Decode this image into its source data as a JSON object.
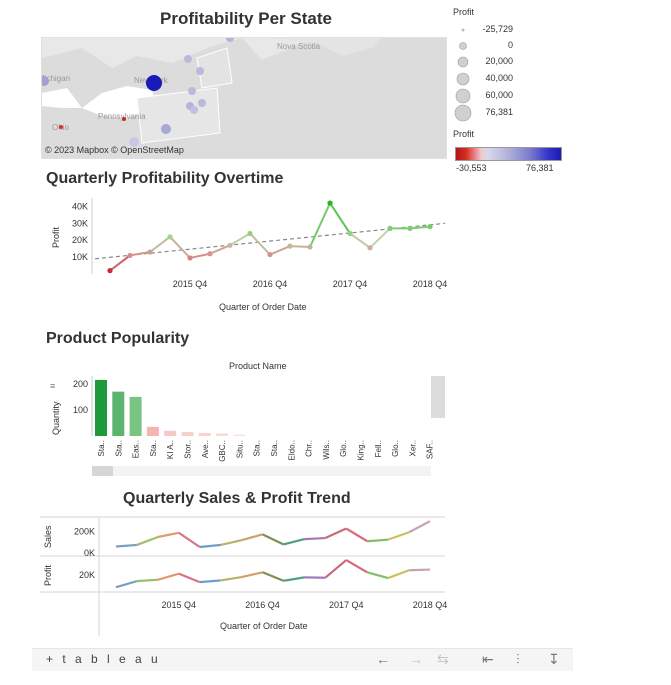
{
  "titles": {
    "map": "Profitability Per State",
    "qpo": "Quarterly Profitability Overtime",
    "pp": "Product Popularity",
    "qsp": "Quarterly Sales & Profit Trend"
  },
  "map": {
    "labels": {
      "nova": "Nova Scotia",
      "york": "New York",
      "penn": "Pennsylvania",
      "ohio": "Ohio",
      "mich": "Michigan"
    },
    "copyright": "© 2023 Mapbox  © OpenStreetMap"
  },
  "legend": {
    "size_title": "Profit",
    "size_items": [
      "-25,729",
      "0",
      "20,000",
      "40,000",
      "60,000",
      "76,381"
    ],
    "color_title": "Profit",
    "color_min": "-30,553",
    "color_max": "76,381"
  },
  "qpo": {
    "ylabel": "Profit",
    "yticks": [
      "40K",
      "30K",
      "20K",
      "10K"
    ],
    "xticks": [
      "2015 Q4",
      "2016 Q4",
      "2017 Q4",
      "2018 Q4"
    ],
    "xlabel": "Quarter of Order Date"
  },
  "pp": {
    "header": "Product Name",
    "ylabel": "Quantity",
    "yticks": [
      "200",
      "100"
    ],
    "products": [
      "Sta..",
      "Sta..",
      "Eas..",
      "Sta..",
      "KI A..",
      "Stor..",
      "Ave..",
      "GBC..",
      "Situ..",
      "Sta..",
      "Sta..",
      "Eldo..",
      "Chr..",
      "Wils..",
      "Glo..",
      "King..",
      "Fell..",
      "Glo..",
      "Xer..",
      "SAF.."
    ]
  },
  "qsp": {
    "sales_label": "Sales",
    "sales_ticks": [
      "200K",
      "0K"
    ],
    "profit_label": "Profit",
    "profit_ticks": [
      "20K"
    ],
    "xticks": [
      "2015 Q4",
      "2016 Q4",
      "2017 Q4",
      "2018 Q4"
    ],
    "xlabel": "Quarter of Order Date"
  },
  "toolbar": {
    "brand": "+ t a b l e a u"
  },
  "chart_data": [
    {
      "type": "line",
      "title": "Quarterly Profitability Overtime",
      "xlabel": "Quarter of Order Date",
      "ylabel": "Profit",
      "ylim": [
        0,
        45000
      ],
      "x": [
        "2014 Q4",
        "2015 Q1",
        "2015 Q2",
        "2015 Q3",
        "2015 Q4",
        "2016 Q1",
        "2016 Q2",
        "2016 Q3",
        "2016 Q4",
        "2017 Q1",
        "2017 Q2",
        "2017 Q3",
        "2017 Q4",
        "2018 Q1",
        "2018 Q2",
        "2018 Q3",
        "2018 Q4"
      ],
      "values": [
        2000,
        11000,
        13000,
        22000,
        9500,
        12000,
        17000,
        24000,
        11500,
        16500,
        16000,
        42000,
        24000,
        15500,
        27000,
        27000,
        28000
      ],
      "trend": [
        9000,
        30000
      ]
    },
    {
      "type": "bar",
      "title": "Product Popularity",
      "xlabel": "Product Name",
      "ylabel": "Quantity",
      "ylim": [
        0,
        230
      ],
      "categories": [
        "Sta..",
        "Sta..",
        "Eas..",
        "Sta..",
        "KI A..",
        "Stor..",
        "Ave..",
        "GBC..",
        "Situ..",
        "Sta..",
        "Sta..",
        "Eldo..",
        "Chr..",
        "Wils..",
        "Glo..",
        "King..",
        "Fell..",
        "Glo..",
        "Xer..",
        "SAF.."
      ],
      "values": [
        215,
        170,
        150,
        35,
        20,
        15,
        12,
        10,
        5,
        0,
        0,
        0,
        0,
        0,
        0,
        0,
        0,
        0,
        0,
        0
      ]
    },
    {
      "type": "line",
      "title": "Quarterly Sales & Profit Trend",
      "xlabel": "Quarter of Order Date",
      "x": [
        "2015 Q1",
        "2015 Q2",
        "2015 Q3",
        "2015 Q4",
        "2016 Q1",
        "2016 Q2",
        "2016 Q3",
        "2016 Q4",
        "2017 Q1",
        "2017 Q2",
        "2017 Q3",
        "2017 Q4",
        "2018 Q1",
        "2018 Q2",
        "2018 Q3",
        "2018 Q4"
      ],
      "series": [
        {
          "name": "Sales",
          "values": [
            60000,
            75000,
            150000,
            190000,
            55000,
            75000,
            120000,
            175000,
            80000,
            130000,
            140000,
            230000,
            110000,
            125000,
            195000,
            300000
          ]
        },
        {
          "name": "Profit",
          "values": [
            2000,
            11000,
            13000,
            22000,
            9500,
            12000,
            17000,
            24000,
            11500,
            16500,
            16000,
            42000,
            24000,
            15500,
            27000,
            28000
          ]
        }
      ],
      "sales_ylim": [
        -30000,
        330000
      ],
      "profit_ylim": [
        -5000,
        45000
      ]
    }
  ]
}
